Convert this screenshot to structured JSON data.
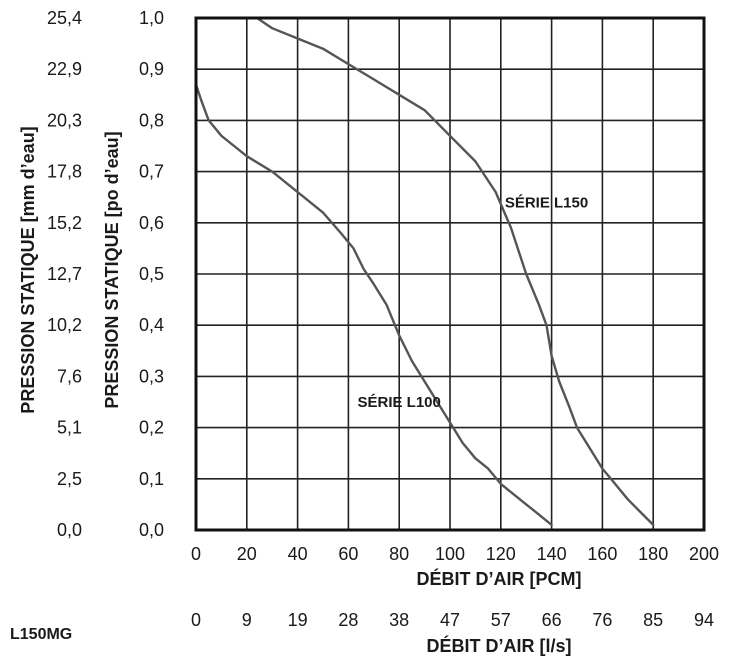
{
  "chart_data": {
    "type": "line",
    "x_cfm_ticks": [
      "0",
      "20",
      "40",
      "60",
      "80",
      "100",
      "120",
      "140",
      "160",
      "180",
      "200"
    ],
    "x_ls_ticks": [
      "0",
      "9",
      "19",
      "28",
      "38",
      "47",
      "57",
      "66",
      "76",
      "85",
      "94"
    ],
    "y_in_ticks": [
      "0,0",
      "0,1",
      "0,2",
      "0,3",
      "0,4",
      "0,5",
      "0,6",
      "0,7",
      "0,8",
      "0,9",
      "1,0"
    ],
    "y_mm_ticks": [
      "0,0",
      "2,5",
      "5,1",
      "7,6",
      "10,2",
      "12,7",
      "15,2",
      "17,8",
      "20,3",
      "22,9",
      "25,4"
    ],
    "xlabel_cfm": "DÉBIT D’AIR [PCM]",
    "xlabel_ls": "DÉBIT D’AIR [l/s]",
    "ylabel_in": "PRESSION STATIQUE [po d’eau]",
    "ylabel_mm": "PRESSION STATIQUE [mm d’eau]",
    "xlim": [
      0,
      200
    ],
    "ylim": [
      0,
      1.0
    ],
    "grid": true,
    "series": [
      {
        "name": "SÉRIE L100",
        "label_at": [
          80,
          0.24
        ],
        "x": [
          0,
          2,
          5,
          10,
          15,
          20,
          30,
          40,
          50,
          57,
          62,
          66,
          70,
          75,
          80,
          85,
          90,
          95,
          100,
          105,
          110,
          115,
          120,
          125,
          130,
          135,
          140
        ],
        "y": [
          0.87,
          0.84,
          0.8,
          0.77,
          0.75,
          0.73,
          0.7,
          0.66,
          0.62,
          0.58,
          0.55,
          0.51,
          0.48,
          0.44,
          0.38,
          0.33,
          0.29,
          0.25,
          0.21,
          0.17,
          0.14,
          0.12,
          0.09,
          0.07,
          0.05,
          0.03,
          0.01
        ]
      },
      {
        "name": "SÉRIE L150",
        "label_at": [
          138,
          0.63
        ],
        "x": [
          24,
          30,
          40,
          50,
          60,
          70,
          80,
          90,
          100,
          110,
          118,
          124,
          130,
          135,
          138,
          140,
          143,
          147,
          150,
          155,
          160,
          165,
          170,
          175,
          180
        ],
        "y": [
          1.0,
          0.98,
          0.96,
          0.94,
          0.91,
          0.88,
          0.85,
          0.82,
          0.77,
          0.72,
          0.66,
          0.59,
          0.5,
          0.44,
          0.4,
          0.34,
          0.29,
          0.24,
          0.2,
          0.16,
          0.12,
          0.09,
          0.06,
          0.035,
          0.01
        ]
      }
    ]
  },
  "footer": {
    "model_code": "L150MG"
  }
}
